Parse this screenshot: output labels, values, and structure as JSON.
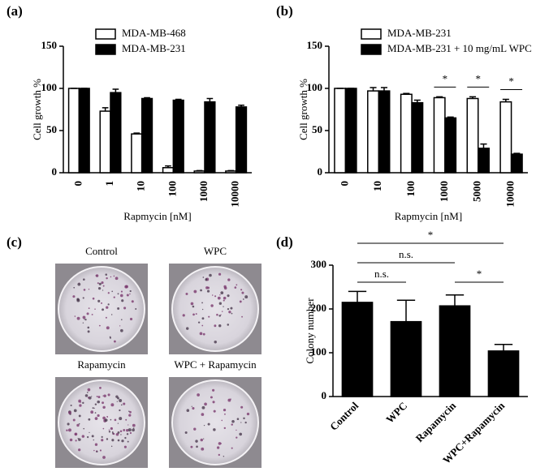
{
  "chart_data": [
    {
      "type": "bar",
      "panel_label": "(a)",
      "xlabel": "Rapmycin [nM]",
      "ylabel": "Cell growth %",
      "categories": [
        "0",
        "1",
        "10",
        "100",
        "1000",
        "10000"
      ],
      "series": [
        {
          "name": "MDA-MB-468",
          "color": "#ffffff",
          "values": [
            100,
            73,
            46,
            6,
            2,
            2
          ],
          "errors": [
            0,
            4,
            1,
            2,
            0.5,
            0.5
          ]
        },
        {
          "name": "MDA-MB-231",
          "color": "#000000",
          "values": [
            100,
            95,
            88,
            86,
            84,
            78
          ],
          "errors": [
            0,
            4,
            1,
            1,
            4,
            2
          ]
        }
      ],
      "ylim": [
        0,
        150
      ],
      "yticks": [
        0,
        50,
        100,
        150
      ]
    },
    {
      "type": "bar",
      "panel_label": "(b)",
      "xlabel": "Rapmycin [nM]",
      "ylabel": "Cell growth %",
      "categories": [
        "0",
        "10",
        "100",
        "1000",
        "5000",
        "10000"
      ],
      "series": [
        {
          "name": "MDA-MB-231",
          "color": "#ffffff",
          "values": [
            100,
            97,
            93,
            89,
            88,
            84
          ],
          "errors": [
            0,
            4,
            1,
            1,
            2,
            3
          ]
        },
        {
          "name": "MDA-MB-231 + 10 mg/mL WPC",
          "color": "#000000",
          "values": [
            100,
            97,
            83,
            65,
            29,
            22
          ],
          "errors": [
            0,
            4,
            3,
            1,
            5,
            1
          ]
        }
      ],
      "ylim": [
        0,
        150
      ],
      "yticks": [
        0,
        50,
        100,
        150
      ],
      "annotations": [
        {
          "text": "*",
          "category": 3
        },
        {
          "text": "*",
          "category": 4
        },
        {
          "text": "*",
          "category": 5
        }
      ]
    },
    {
      "type": "bar",
      "panel_label": "(d)",
      "ylabel": "Colony number",
      "categories": [
        "Control",
        "WPC",
        "Rapamycin",
        "WPC+Rapamycin"
      ],
      "values": [
        215,
        171,
        207,
        104
      ],
      "errors": [
        25,
        49,
        25,
        15
      ],
      "color": "#000000",
      "ylim": [
        0,
        300
      ],
      "yticks": [
        0,
        100,
        200,
        300
      ],
      "annotations": [
        {
          "text": "*",
          "between": [
            0,
            3
          ]
        },
        {
          "text": "n.s.",
          "between": [
            0,
            2
          ]
        },
        {
          "text": "n.s.",
          "between": [
            0,
            1
          ]
        },
        {
          "text": "*",
          "between": [
            2,
            3
          ]
        }
      ]
    }
  ],
  "images": {
    "panel_label": "(c)",
    "labels": [
      "Control",
      "WPC",
      "Rapamycin",
      "WPC + Rapamycin"
    ]
  }
}
